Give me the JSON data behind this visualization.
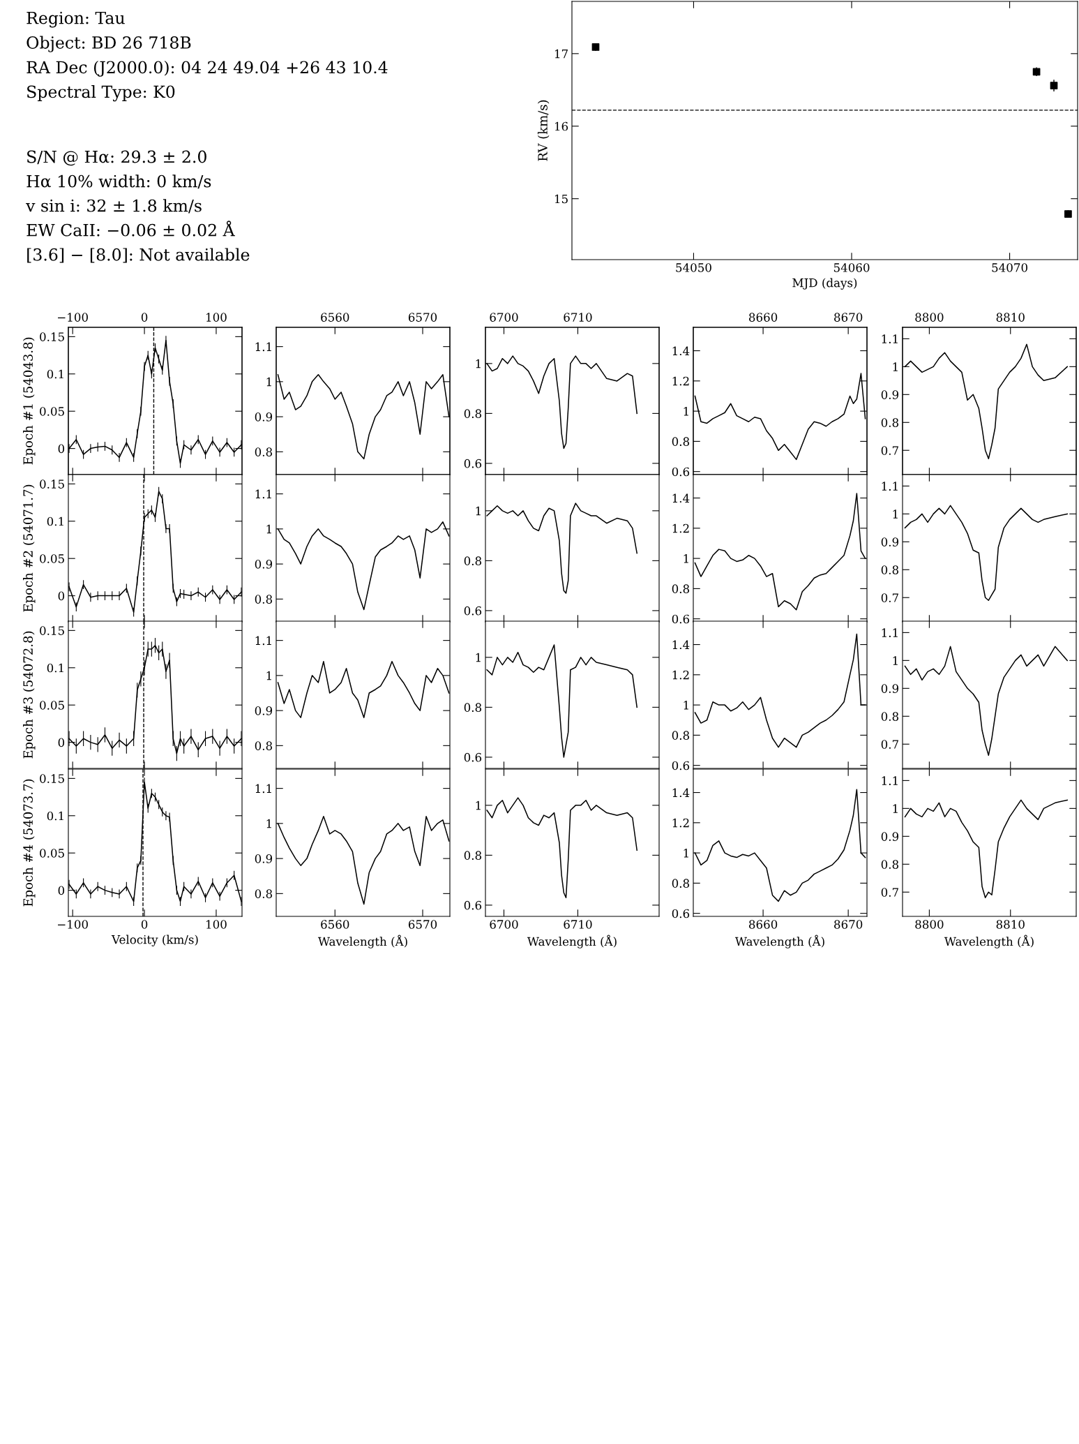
{
  "chart_data": [
    {
      "type": "other",
      "annotations": [
        "Region: Tau\nObject: BD 26 718B\nRA Dec (J2000.0): 04 24 49.04 +26 43 10.4\nSpectral Type: K0",
        "S/N @ Hα: 29.3 ± 2.0\nHα 10% width: 0 km/s\nv sin i: 32 ± 1.8 km/s\nEW CaII: −0.06 ± 0.02 Å\n[3.6] − [8.0]: Not available"
      ]
    },
    {
      "type": "scatter",
      "marker": "square",
      "xlabel": "MJD (days)",
      "ylabel": "RV (km/s)",
      "x": [
        54043.8,
        54071.7,
        54072.8,
        54073.7
      ],
      "xlim": [
        54042.3,
        54074.3
      ],
      "xticks": [
        54050,
        54060,
        54070
      ],
      "ylim": [
        14.16,
        17.72
      ],
      "yticks": [
        15,
        16,
        17
      ],
      "series": [
        {
          "color": "#000000",
          "values": [
            17.09,
            16.75,
            16.56,
            14.79
          ],
          "errors": [
            0.05,
            0.06,
            0.08,
            0.05
          ]
        }
      ],
      "ref_lines": [
        {
          "axis": "y",
          "value": 16.22,
          "line_style": "dashed",
          "color": "#000000"
        }
      ]
    },
    {
      "type": "line",
      "ylabel": "Epoch #1 (54043.8)",
      "tick_labels": "y",
      "x": [
        -105,
        -95,
        -85,
        -75,
        -65,
        -55,
        -45,
        -35,
        -25,
        -15,
        -10,
        -5,
        0,
        5,
        10,
        15,
        20,
        25,
        30,
        35,
        40,
        45,
        50,
        55,
        65,
        75,
        85,
        95,
        105,
        115,
        125,
        135
      ],
      "xlim": [
        -106,
        136
      ],
      "x2lim": [
        -106,
        136
      ],
      "x2ticks": [
        {
          "value": -100,
          "label": "−100"
        },
        0,
        100
      ],
      "ylim": [
        -0.035,
        0.1625
      ],
      "yticks": [
        0,
        0.05,
        0.1,
        0.15
      ],
      "series": [
        {
          "color": "#000000",
          "values": [
            0,
            0.012,
            -0.008,
            0,
            0.002,
            0.003,
            -0.002,
            -0.012,
            0.008,
            -0.012,
            0.02,
            0.05,
            0.11,
            0.125,
            0.1,
            0.135,
            0.12,
            0.105,
            0.145,
            0.09,
            0.06,
            0.01,
            -0.02,
            0.005,
            -0.002,
            0.012,
            -0.008,
            0.01,
            -0.005,
            0.008,
            -0.005,
            0.005
          ],
          "errors": [
            0.006,
            0.006,
            0.006,
            0.006,
            0.006,
            0.006,
            0.006,
            0.006,
            0.006,
            0.006,
            0.006,
            0.006,
            0.006,
            0.006,
            0.006,
            0.006,
            0.006,
            0.006,
            0.006,
            0.006,
            0.006,
            0.006,
            0.006,
            0.006,
            0.006,
            0.006,
            0.006,
            0.006,
            0.006,
            0.006,
            0.006,
            0.006
          ]
        }
      ],
      "ref_lines": [
        {
          "axis": "x",
          "value": 13,
          "line_style": "dashed",
          "color": "#000000"
        }
      ]
    },
    {
      "type": "line",
      "tick_labels": "y",
      "x": [
        6553.5,
        6554.2,
        6554.8,
        6555.5,
        6556.1,
        6556.8,
        6557.4,
        6558.1,
        6558.7,
        6559.4,
        6560.0,
        6560.7,
        6561.3,
        6562.0,
        6562.6,
        6563.3,
        6563.9,
        6564.6,
        6565.2,
        6565.9,
        6566.5,
        6567.2,
        6567.8,
        6568.5,
        6569.1,
        6569.7,
        6570.4,
        6571.0,
        6571.7,
        6572.3,
        6573.0
      ],
      "xlim": [
        6553.3,
        6573.1
      ],
      "x2lim": [
        6553.3,
        6573.1
      ],
      "x2ticks": [
        6560,
        6570
      ],
      "ylim": [
        0.735,
        1.155
      ],
      "yticks": [
        0.8,
        0.9,
        1,
        1.1
      ],
      "series": [
        {
          "color": "#000000",
          "values": [
            1.02,
            0.95,
            0.97,
            0.92,
            0.93,
            0.96,
            1.0,
            1.02,
            1.0,
            0.98,
            0.95,
            0.97,
            0.93,
            0.88,
            0.8,
            0.78,
            0.85,
            0.9,
            0.92,
            0.96,
            0.97,
            1.0,
            0.96,
            1.0,
            0.94,
            0.85,
            1.0,
            0.98,
            1.0,
            1.02,
            0.9
          ]
        }
      ]
    },
    {
      "type": "line",
      "tick_labels": "y",
      "x": [
        6697.7,
        6698.4,
        6699.1,
        6699.8,
        6700.5,
        6701.2,
        6701.9,
        6702.6,
        6703.3,
        6704.0,
        6704.7,
        6705.4,
        6706.1,
        6706.8,
        6707.5,
        6707.8,
        6708.1,
        6708.4,
        6708.7,
        6709.0,
        6709.7,
        6710.4,
        6711.1,
        6711.8,
        6712.5,
        6713.9,
        6715.3,
        6716.7,
        6717.4,
        6718.0
      ],
      "xlim": [
        6697.5,
        6721
      ],
      "x2lim": [
        6697.5,
        6721
      ],
      "x2ticks": [
        6700,
        6710
      ],
      "ylim": [
        0.555,
        1.145
      ],
      "yticks": [
        0.6,
        0.8,
        1
      ],
      "series": [
        {
          "color": "#000000",
          "values": [
            1.0,
            0.97,
            0.98,
            1.02,
            1.0,
            1.03,
            1.0,
            0.99,
            0.97,
            0.93,
            0.88,
            0.95,
            1.0,
            1.02,
            0.85,
            0.72,
            0.66,
            0.68,
            0.82,
            1.0,
            1.03,
            1.0,
            1.0,
            0.98,
            1.0,
            0.94,
            0.93,
            0.96,
            0.95,
            0.8
          ]
        }
      ]
    },
    {
      "type": "line",
      "tick_labels": "y",
      "x": [
        8652.0,
        8652.7,
        8653.4,
        8654.1,
        8654.8,
        8655.5,
        8656.2,
        8656.9,
        8657.6,
        8658.3,
        8659.0,
        8659.7,
        8660.4,
        8661.1,
        8661.8,
        8662.5,
        8663.2,
        8663.9,
        8664.6,
        8665.3,
        8666.0,
        8666.7,
        8667.4,
        8668.1,
        8668.8,
        8669.5,
        8670.2,
        8670.6,
        8671.0,
        8671.5,
        8672.0
      ],
      "xlim": [
        8651.8,
        8672.2
      ],
      "x2lim": [
        8651.8,
        8672.2
      ],
      "x2ticks": [
        8660,
        8670
      ],
      "ylim": [
        0.58,
        1.555
      ],
      "yticks": [
        0.6,
        0.8,
        1,
        1.2,
        1.4
      ],
      "series": [
        {
          "color": "#000000",
          "values": [
            1.1,
            0.93,
            0.92,
            0.95,
            0.97,
            0.99,
            1.05,
            0.97,
            0.95,
            0.93,
            0.96,
            0.95,
            0.87,
            0.82,
            0.74,
            0.78,
            0.73,
            0.68,
            0.78,
            0.88,
            0.93,
            0.92,
            0.9,
            0.93,
            0.95,
            0.98,
            1.1,
            1.05,
            1.08,
            1.25,
            0.95
          ]
        }
      ]
    },
    {
      "type": "line",
      "tick_labels": "y",
      "x": [
        8797.0,
        8797.7,
        8798.4,
        8799.1,
        8799.8,
        8800.5,
        8801.2,
        8801.9,
        8802.6,
        8803.3,
        8804.0,
        8804.7,
        8805.4,
        8806.1,
        8806.5,
        8806.9,
        8807.3,
        8807.7,
        8808.1,
        8808.5,
        8809.2,
        8809.9,
        8810.6,
        8811.3,
        8812.0,
        8812.7,
        8813.4,
        8814.1,
        8815.5,
        8817.0
      ],
      "xlim": [
        8796.7,
        8818.1
      ],
      "x2lim": [
        8796.7,
        8818.1
      ],
      "x2ticks": [
        8800,
        8810
      ],
      "ylim": [
        0.613,
        1.141
      ],
      "yticks": [
        0.7,
        0.8,
        0.9,
        1,
        1.1
      ],
      "series": [
        {
          "color": "#000000",
          "values": [
            1.0,
            1.02,
            1.0,
            0.98,
            0.99,
            1.0,
            1.03,
            1.05,
            1.02,
            1.0,
            0.98,
            0.88,
            0.9,
            0.85,
            0.78,
            0.7,
            0.67,
            0.72,
            0.78,
            0.92,
            0.95,
            0.98,
            1.0,
            1.03,
            1.08,
            1.0,
            0.97,
            0.95,
            0.96,
            1.0
          ]
        }
      ]
    },
    {
      "type": "line",
      "ylabel": "Epoch #2 (54071.7)",
      "tick_labels": "y",
      "x": [
        -105,
        -95,
        -85,
        -75,
        -65,
        -55,
        -45,
        -35,
        -25,
        -15,
        -10,
        -5,
        0,
        5,
        10,
        15,
        20,
        25,
        30,
        35,
        40,
        45,
        50,
        55,
        65,
        75,
        85,
        95,
        105,
        115,
        125,
        135
      ],
      "xlim": [
        -106,
        136
      ],
      "ylim": [
        -0.035,
        0.1625
      ],
      "yticks": [
        0,
        0.05,
        0.1,
        0.15
      ],
      "series": [
        {
          "color": "#000000",
          "values": [
            0.012,
            -0.015,
            0.015,
            -0.002,
            0,
            0,
            0,
            0,
            0.01,
            -0.022,
            0.02,
            0.06,
            0.105,
            0.11,
            0.115,
            0.105,
            0.14,
            0.13,
            0.09,
            0.09,
            0.01,
            -0.008,
            0.003,
            0.002,
            0,
            0.005,
            -0.002,
            0.008,
            -0.005,
            0.008,
            -0.005,
            0.005
          ],
          "errors": [
            0.006,
            0.006,
            0.006,
            0.006,
            0.006,
            0.006,
            0.006,
            0.006,
            0.006,
            0.006,
            0.006,
            0.006,
            0.006,
            0.006,
            0.006,
            0.006,
            0.006,
            0.006,
            0.006,
            0.006,
            0.006,
            0.006,
            0.006,
            0.006,
            0.006,
            0.006,
            0.006,
            0.006,
            0.006,
            0.006,
            0.006,
            0.006
          ]
        }
      ],
      "ref_lines": [
        {
          "axis": "x",
          "value": -1,
          "line_style": "dashed",
          "color": "#000000"
        }
      ]
    },
    {
      "type": "line",
      "tick_labels": "y",
      "x": [
        6553.5,
        6554.2,
        6554.8,
        6555.5,
        6556.1,
        6556.8,
        6557.4,
        6558.1,
        6558.7,
        6559.4,
        6560.0,
        6560.7,
        6561.3,
        6562.0,
        6562.6,
        6563.3,
        6563.9,
        6564.6,
        6565.2,
        6565.9,
        6566.5,
        6567.2,
        6567.8,
        6568.5,
        6569.1,
        6569.7,
        6570.4,
        6571.0,
        6571.7,
        6572.3,
        6573.0
      ],
      "xlim": [
        6553.3,
        6573.1
      ],
      "xticks": [
        6560,
        6570
      ],
      "ylim": [
        0.735,
        1.155
      ],
      "yticks": [
        0.8,
        0.9,
        1,
        1.1
      ],
      "series": [
        {
          "color": "#000000",
          "values": [
            1.0,
            0.97,
            0.96,
            0.93,
            0.9,
            0.95,
            0.98,
            1.0,
            0.98,
            0.97,
            0.96,
            0.95,
            0.93,
            0.9,
            0.82,
            0.77,
            0.84,
            0.92,
            0.94,
            0.95,
            0.96,
            0.98,
            0.97,
            0.98,
            0.94,
            0.86,
            1.0,
            0.99,
            1.0,
            1.02,
            0.98
          ]
        }
      ]
    },
    {
      "type": "line",
      "tick_labels": "y",
      "x": [
        6697.7,
        6698.4,
        6699.1,
        6699.8,
        6700.5,
        6701.2,
        6701.9,
        6702.6,
        6703.3,
        6704.0,
        6704.7,
        6705.4,
        6706.1,
        6706.8,
        6707.5,
        6707.8,
        6708.1,
        6708.4,
        6708.7,
        6709.0,
        6709.7,
        6710.4,
        6711.1,
        6711.8,
        6712.5,
        6713.9,
        6715.3,
        6716.7,
        6717.4,
        6718.0
      ],
      "xlim": [
        6697.5,
        6721
      ],
      "xticks": [
        6700,
        6710
      ],
      "ylim": [
        0.555,
        1.145
      ],
      "yticks": [
        0.6,
        0.8,
        1
      ],
      "series": [
        {
          "color": "#000000",
          "values": [
            0.98,
            1.0,
            1.02,
            1.0,
            0.99,
            1.0,
            0.98,
            1.0,
            0.96,
            0.93,
            0.92,
            0.98,
            1.01,
            1.0,
            0.88,
            0.75,
            0.68,
            0.67,
            0.72,
            0.98,
            1.03,
            1.0,
            0.99,
            0.98,
            0.98,
            0.95,
            0.97,
            0.96,
            0.93,
            0.83
          ]
        }
      ]
    },
    {
      "type": "line",
      "tick_labels": "y",
      "x": [
        8652.0,
        8652.7,
        8653.4,
        8654.1,
        8654.8,
        8655.5,
        8656.2,
        8656.9,
        8657.6,
        8658.3,
        8659.0,
        8659.7,
        8660.4,
        8661.1,
        8661.8,
        8662.5,
        8663.2,
        8663.9,
        8664.6,
        8665.3,
        8666.0,
        8666.7,
        8667.4,
        8668.1,
        8668.8,
        8669.5,
        8670.2,
        8670.6,
        8671.0,
        8671.5,
        8672.0
      ],
      "xlim": [
        8651.8,
        8672.2
      ],
      "xticks": [
        8660,
        8670
      ],
      "ylim": [
        0.58,
        1.555
      ],
      "yticks": [
        0.6,
        0.8,
        1,
        1.2,
        1.4
      ],
      "series": [
        {
          "color": "#000000",
          "values": [
            0.97,
            0.88,
            0.95,
            1.02,
            1.06,
            1.05,
            1.0,
            0.98,
            0.99,
            1.02,
            1.0,
            0.95,
            0.88,
            0.9,
            0.68,
            0.72,
            0.7,
            0.66,
            0.78,
            0.82,
            0.87,
            0.89,
            0.9,
            0.94,
            0.98,
            1.02,
            1.15,
            1.25,
            1.43,
            1.05,
            1.0
          ]
        }
      ]
    },
    {
      "type": "line",
      "tick_labels": "y",
      "x": [
        8797.0,
        8797.7,
        8798.4,
        8799.1,
        8799.8,
        8800.5,
        8801.2,
        8801.9,
        8802.6,
        8803.3,
        8804.0,
        8804.7,
        8805.4,
        8806.1,
        8806.5,
        8806.9,
        8807.3,
        8807.7,
        8808.1,
        8808.5,
        8809.2,
        8809.9,
        8810.6,
        8811.3,
        8812.0,
        8812.7,
        8813.4,
        8814.1,
        8815.5,
        8817.0
      ],
      "xlim": [
        8796.7,
        8818.1
      ],
      "xticks": [
        8800,
        8810
      ],
      "ylim": [
        0.613,
        1.141
      ],
      "yticks": [
        0.7,
        0.8,
        0.9,
        1,
        1.1
      ],
      "series": [
        {
          "color": "#000000",
          "values": [
            0.95,
            0.97,
            0.98,
            1.0,
            0.97,
            1.0,
            1.02,
            1.0,
            1.03,
            1.0,
            0.97,
            0.93,
            0.87,
            0.86,
            0.76,
            0.7,
            0.69,
            0.71,
            0.73,
            0.88,
            0.95,
            0.98,
            1.0,
            1.02,
            1.0,
            0.98,
            0.97,
            0.98,
            0.99,
            1.0
          ]
        }
      ]
    },
    {
      "type": "line",
      "ylabel": "Epoch #3 (54072.8)",
      "tick_labels": "y",
      "x": [
        -105,
        -95,
        -85,
        -75,
        -65,
        -55,
        -45,
        -35,
        -25,
        -15,
        -10,
        -5,
        0,
        5,
        10,
        15,
        20,
        25,
        30,
        35,
        40,
        45,
        50,
        55,
        65,
        75,
        85,
        95,
        105,
        115,
        125,
        135
      ],
      "xlim": [
        -106,
        136
      ],
      "ylim": [
        -0.035,
        0.1625
      ],
      "yticks": [
        0,
        0.05,
        0.1,
        0.15
      ],
      "series": [
        {
          "color": "#000000",
          "values": [
            0.005,
            -0.005,
            0.005,
            0,
            -0.003,
            0.01,
            -0.008,
            0.003,
            -0.005,
            0.005,
            0.07,
            0.085,
            0.1,
            0.125,
            0.125,
            0.13,
            0.12,
            0.125,
            0.095,
            0.11,
            0.005,
            -0.015,
            0.005,
            -0.005,
            0.008,
            -0.01,
            0.005,
            0.008,
            -0.008,
            0.008,
            -0.005,
            0.005
          ],
          "errors": [
            0.01,
            0.01,
            0.01,
            0.01,
            0.01,
            0.01,
            0.01,
            0.01,
            0.01,
            0.01,
            0.01,
            0.01,
            0.01,
            0.01,
            0.01,
            0.01,
            0.01,
            0.01,
            0.01,
            0.01,
            0.01,
            0.01,
            0.01,
            0.01,
            0.01,
            0.01,
            0.01,
            0.01,
            0.01,
            0.01,
            0.01,
            0.01
          ]
        }
      ],
      "ref_lines": [
        {
          "axis": "x",
          "value": -1,
          "line_style": "dashed",
          "color": "#000000"
        }
      ]
    },
    {
      "type": "line",
      "tick_labels": "y",
      "x": [
        6553.5,
        6554.2,
        6554.8,
        6555.5,
        6556.1,
        6556.8,
        6557.4,
        6558.1,
        6558.7,
        6559.4,
        6560.0,
        6560.7,
        6561.3,
        6562.0,
        6562.6,
        6563.3,
        6563.9,
        6564.6,
        6565.2,
        6565.9,
        6566.5,
        6567.2,
        6567.8,
        6568.5,
        6569.1,
        6569.7,
        6570.4,
        6571.0,
        6571.7,
        6572.3,
        6573.0
      ],
      "xlim": [
        6553.3,
        6573.1
      ],
      "xticks": [
        6560,
        6570
      ],
      "ylim": [
        0.735,
        1.155
      ],
      "yticks": [
        0.8,
        0.9,
        1,
        1.1
      ],
      "series": [
        {
          "color": "#000000",
          "values": [
            0.98,
            0.92,
            0.96,
            0.9,
            0.88,
            0.95,
            1.0,
            0.98,
            1.04,
            0.95,
            0.96,
            0.98,
            1.02,
            0.95,
            0.93,
            0.88,
            0.95,
            0.96,
            0.97,
            1.0,
            1.04,
            1.0,
            0.98,
            0.95,
            0.92,
            0.9,
            1.0,
            0.98,
            1.02,
            1.0,
            0.95
          ]
        }
      ]
    },
    {
      "type": "line",
      "tick_labels": "y",
      "x": [
        6697.7,
        6698.4,
        6699.1,
        6699.8,
        6700.5,
        6701.2,
        6701.9,
        6702.6,
        6703.3,
        6704.0,
        6704.7,
        6705.4,
        6706.1,
        6706.8,
        6707.5,
        6707.8,
        6708.1,
        6708.4,
        6708.7,
        6709.0,
        6709.7,
        6710.4,
        6711.1,
        6711.8,
        6712.5,
        6713.9,
        6715.3,
        6716.7,
        6717.4,
        6718.0
      ],
      "xlim": [
        6697.5,
        6721
      ],
      "xticks": [
        6700,
        6710
      ],
      "ylim": [
        0.555,
        1.145
      ],
      "yticks": [
        0.6,
        0.8,
        1
      ],
      "series": [
        {
          "color": "#000000",
          "values": [
            0.95,
            0.93,
            1.0,
            0.97,
            1.0,
            0.98,
            1.02,
            0.97,
            0.96,
            0.94,
            0.96,
            0.95,
            1.0,
            1.05,
            0.8,
            0.68,
            0.6,
            0.65,
            0.7,
            0.95,
            0.96,
            1.0,
            0.97,
            1.0,
            0.98,
            0.97,
            0.96,
            0.95,
            0.93,
            0.8
          ]
        }
      ]
    },
    {
      "type": "line",
      "tick_labels": "y",
      "x": [
        8652.0,
        8652.7,
        8653.4,
        8654.1,
        8654.8,
        8655.5,
        8656.2,
        8656.9,
        8657.6,
        8658.3,
        8659.0,
        8659.7,
        8660.4,
        8661.1,
        8661.8,
        8662.5,
        8663.2,
        8663.9,
        8664.6,
        8665.3,
        8666.0,
        8666.7,
        8667.4,
        8668.1,
        8668.8,
        8669.5,
        8670.2,
        8670.6,
        8671.0,
        8671.5,
        8672.0
      ],
      "xlim": [
        8651.8,
        8672.2
      ],
      "xticks": [
        8660,
        8670
      ],
      "ylim": [
        0.58,
        1.555
      ],
      "yticks": [
        0.6,
        0.8,
        1,
        1.2,
        1.4
      ],
      "series": [
        {
          "color": "#000000",
          "values": [
            0.95,
            0.88,
            0.9,
            1.02,
            1.0,
            1.0,
            0.96,
            0.98,
            1.02,
            0.97,
            1.0,
            1.05,
            0.9,
            0.78,
            0.72,
            0.78,
            0.75,
            0.72,
            0.8,
            0.82,
            0.85,
            0.88,
            0.9,
            0.93,
            0.97,
            1.02,
            1.2,
            1.3,
            1.47,
            1.0,
            1.0
          ]
        }
      ]
    },
    {
      "type": "line",
      "tick_labels": "y",
      "x": [
        8797.0,
        8797.7,
        8798.4,
        8799.1,
        8799.8,
        8800.5,
        8801.2,
        8801.9,
        8802.6,
        8803.3,
        8804.0,
        8804.7,
        8805.4,
        8806.1,
        8806.5,
        8806.9,
        8807.3,
        8807.7,
        8808.1,
        8808.5,
        8809.2,
        8809.9,
        8810.6,
        8811.3,
        8812.0,
        8812.7,
        8813.4,
        8814.1,
        8815.5,
        8817.0
      ],
      "xlim": [
        8796.7,
        8818.1
      ],
      "xticks": [
        8800,
        8810
      ],
      "ylim": [
        0.613,
        1.141
      ],
      "yticks": [
        0.7,
        0.8,
        0.9,
        1,
        1.1
      ],
      "series": [
        {
          "color": "#000000",
          "values": [
            0.98,
            0.95,
            0.97,
            0.93,
            0.96,
            0.97,
            0.95,
            0.98,
            1.05,
            0.96,
            0.93,
            0.9,
            0.88,
            0.85,
            0.75,
            0.7,
            0.66,
            0.72,
            0.8,
            0.88,
            0.94,
            0.97,
            1.0,
            1.02,
            0.98,
            1.0,
            1.02,
            0.98,
            1.05,
            1.0
          ]
        }
      ]
    },
    {
      "type": "line",
      "ylabel": "Epoch #4 (54073.7)",
      "xlabel": "Velocity (km/s)",
      "x": [
        -105,
        -95,
        -85,
        -75,
        -65,
        -55,
        -45,
        -35,
        -25,
        -15,
        -10,
        -5,
        0,
        5,
        10,
        15,
        20,
        25,
        30,
        35,
        40,
        45,
        50,
        55,
        65,
        75,
        85,
        95,
        105,
        115,
        125,
        135
      ],
      "xlim": [
        -106,
        136
      ],
      "xticks": [
        {
          "value": -100,
          "label": "−100"
        },
        0,
        100
      ],
      "ylim": [
        -0.035,
        0.1625
      ],
      "yticks": [
        0,
        0.05,
        0.1,
        0.15
      ],
      "series": [
        {
          "color": "#000000",
          "values": [
            0.008,
            -0.005,
            0.01,
            -0.005,
            0.005,
            0,
            -0.003,
            -0.005,
            0.005,
            -0.015,
            0.03,
            0.04,
            0.145,
            0.11,
            0.13,
            0.125,
            0.115,
            0.105,
            0.1,
            0.098,
            0.04,
            0.0,
            -0.015,
            0.005,
            -0.005,
            0.012,
            -0.01,
            0.01,
            -0.008,
            0.01,
            0.02,
            -0.015
          ],
          "errors": [
            0.006,
            0.006,
            0.006,
            0.006,
            0.006,
            0.006,
            0.006,
            0.006,
            0.006,
            0.006,
            0.006,
            0.006,
            0.006,
            0.006,
            0.006,
            0.006,
            0.006,
            0.006,
            0.006,
            0.006,
            0.006,
            0.006,
            0.006,
            0.006,
            0.006,
            0.006,
            0.006,
            0.006,
            0.006,
            0.006,
            0.006,
            0.006
          ]
        }
      ],
      "ref_lines": [
        {
          "axis": "x",
          "value": -2,
          "line_style": "dashed",
          "color": "#000000"
        }
      ]
    },
    {
      "type": "line",
      "xlabel": "Wavelength (Å)",
      "x": [
        6553.5,
        6554.2,
        6554.8,
        6555.5,
        6556.1,
        6556.8,
        6557.4,
        6558.1,
        6558.7,
        6559.4,
        6560.0,
        6560.7,
        6561.3,
        6562.0,
        6562.6,
        6563.3,
        6563.9,
        6564.6,
        6565.2,
        6565.9,
        6566.5,
        6567.2,
        6567.8,
        6568.5,
        6569.1,
        6569.7,
        6570.4,
        6571.0,
        6571.7,
        6572.3,
        6573.0
      ],
      "xlim": [
        6553.3,
        6573.1
      ],
      "xticks": [
        6560,
        6570
      ],
      "ylim": [
        0.735,
        1.155
      ],
      "yticks": [
        0.8,
        0.9,
        1,
        1.1
      ],
      "series": [
        {
          "color": "#000000",
          "values": [
            1.0,
            0.96,
            0.93,
            0.9,
            0.88,
            0.9,
            0.94,
            0.98,
            1.02,
            0.97,
            0.98,
            0.97,
            0.95,
            0.92,
            0.83,
            0.77,
            0.86,
            0.9,
            0.92,
            0.97,
            0.98,
            1.0,
            0.98,
            0.99,
            0.92,
            0.88,
            1.02,
            0.98,
            1.0,
            1.01,
            0.95
          ]
        }
      ]
    },
    {
      "type": "line",
      "xlabel": "Wavelength (Å)",
      "x": [
        6697.7,
        6698.4,
        6699.1,
        6699.8,
        6700.5,
        6701.2,
        6701.9,
        6702.6,
        6703.3,
        6704.0,
        6704.7,
        6705.4,
        6706.1,
        6706.8,
        6707.5,
        6707.8,
        6708.1,
        6708.4,
        6708.7,
        6709.0,
        6709.7,
        6710.4,
        6711.1,
        6711.8,
        6712.5,
        6713.9,
        6715.3,
        6716.7,
        6717.4,
        6718.0
      ],
      "xlim": [
        6697.5,
        6721
      ],
      "xticks": [
        6700,
        6710
      ],
      "ylim": [
        0.555,
        1.145
      ],
      "yticks": [
        0.6,
        0.8,
        1
      ],
      "series": [
        {
          "color": "#000000",
          "values": [
            0.98,
            0.95,
            1.0,
            1.02,
            0.97,
            1.0,
            1.03,
            1.0,
            0.95,
            0.93,
            0.92,
            0.96,
            0.95,
            0.97,
            0.85,
            0.72,
            0.65,
            0.63,
            0.78,
            0.98,
            1.0,
            1.0,
            1.02,
            0.98,
            1.0,
            0.97,
            0.96,
            0.97,
            0.95,
            0.82
          ]
        }
      ]
    },
    {
      "type": "line",
      "xlabel": "Wavelength (Å)",
      "x": [
        8652.0,
        8652.7,
        8653.4,
        8654.1,
        8654.8,
        8655.5,
        8656.2,
        8656.9,
        8657.6,
        8658.3,
        8659.0,
        8659.7,
        8660.4,
        8661.1,
        8661.8,
        8662.5,
        8663.2,
        8663.9,
        8664.6,
        8665.3,
        8666.0,
        8666.7,
        8667.4,
        8668.1,
        8668.8,
        8669.5,
        8670.2,
        8670.6,
        8671.0,
        8671.5,
        8672.0
      ],
      "xlim": [
        8651.8,
        8672.2
      ],
      "xticks": [
        8660,
        8670
      ],
      "ylim": [
        0.58,
        1.555
      ],
      "yticks": [
        0.6,
        0.8,
        1,
        1.2,
        1.4
      ],
      "series": [
        {
          "color": "#000000",
          "values": [
            1.0,
            0.92,
            0.95,
            1.05,
            1.08,
            1.0,
            0.98,
            0.97,
            0.99,
            0.98,
            1.0,
            0.95,
            0.9,
            0.72,
            0.68,
            0.75,
            0.72,
            0.74,
            0.8,
            0.82,
            0.86,
            0.88,
            0.9,
            0.92,
            0.96,
            1.02,
            1.15,
            1.25,
            1.42,
            1.0,
            0.97
          ]
        }
      ]
    },
    {
      "type": "line",
      "xlabel": "Wavelength (Å)",
      "x": [
        8797.0,
        8797.7,
        8798.4,
        8799.1,
        8799.8,
        8800.5,
        8801.2,
        8801.9,
        8802.6,
        8803.3,
        8804.0,
        8804.7,
        8805.4,
        8806.1,
        8806.5,
        8806.9,
        8807.3,
        8807.7,
        8808.1,
        8808.5,
        8809.2,
        8809.9,
        8810.6,
        8811.3,
        8812.0,
        8812.7,
        8813.4,
        8814.1,
        8815.5,
        8817.0
      ],
      "xlim": [
        8796.7,
        8818.1
      ],
      "xticks": [
        8800,
        8810
      ],
      "ylim": [
        0.613,
        1.141
      ],
      "yticks": [
        0.7,
        0.8,
        0.9,
        1,
        1.1
      ],
      "series": [
        {
          "color": "#000000",
          "values": [
            0.97,
            1.0,
            0.98,
            0.97,
            1.0,
            0.99,
            1.02,
            0.97,
            1.0,
            0.99,
            0.95,
            0.92,
            0.88,
            0.86,
            0.72,
            0.68,
            0.7,
            0.69,
            0.78,
            0.88,
            0.93,
            0.97,
            1.0,
            1.03,
            1.0,
            0.98,
            0.96,
            1.0,
            1.02,
            1.03
          ]
        }
      ]
    }
  ]
}
